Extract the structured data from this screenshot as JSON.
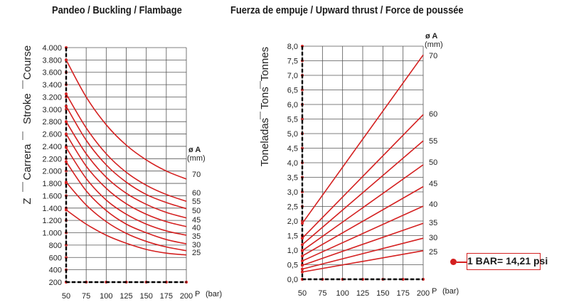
{
  "titles": {
    "left": "Pandeo / Buckling / Flambage",
    "right": "Fuerza de empuje / Upward thrust / Force de poussée"
  },
  "note": {
    "text": "1 BAR= 14,21 psi",
    "color": "#d42020"
  },
  "chart_data": [
    {
      "type": "line",
      "title": "Pandeo / Buckling / Flambage",
      "xlabel": "P",
      "xunit": "(bar)",
      "ylabel_parts": [
        "Z",
        "Carrera",
        "Stroke",
        "Course"
      ],
      "legend_title": "ø A",
      "legend_unit": "(mm)",
      "xlim": [
        50,
        200
      ],
      "ylim": [
        200,
        4000
      ],
      "x_ticks": [
        "50",
        "75",
        "100",
        "125",
        "150",
        "175",
        "200"
      ],
      "y_ticks": [
        "200",
        "400",
        "600",
        "800",
        "1.000",
        "1.200",
        "1.400",
        "1.600",
        "1.800",
        "2.000",
        "2.200",
        "2.400",
        "2.600",
        "2.800",
        "3.000",
        "3.200",
        "3.400",
        "3.600",
        "3.800",
        "4.000"
      ],
      "grid": true,
      "series_color": "#d42020",
      "x": [
        50,
        75,
        100,
        125,
        150,
        175,
        200
      ],
      "series": [
        {
          "name": "70",
          "values": [
            3800,
            3200,
            2750,
            2420,
            2180,
            2000,
            1870
          ]
        },
        {
          "name": "60",
          "values": [
            3250,
            2700,
            2280,
            1980,
            1770,
            1620,
            1510
          ]
        },
        {
          "name": "55",
          "values": [
            3050,
            2500,
            2100,
            1820,
            1620,
            1490,
            1390
          ]
        },
        {
          "name": "50",
          "values": [
            2800,
            2280,
            1900,
            1640,
            1460,
            1330,
            1240
          ]
        },
        {
          "name": "45",
          "values": [
            2600,
            2080,
            1720,
            1470,
            1300,
            1180,
            1100
          ]
        },
        {
          "name": "40",
          "values": [
            2380,
            1880,
            1530,
            1300,
            1140,
            1030,
            960
          ]
        },
        {
          "name": "35",
          "values": [
            2150,
            1680,
            1360,
            1140,
            1000,
            890,
            820
          ]
        },
        {
          "name": "30",
          "values": [
            1820,
            1450,
            1180,
            990,
            860,
            770,
            710
          ]
        },
        {
          "name": "25",
          "values": [
            1370,
            1140,
            960,
            830,
            730,
            670,
            640
          ]
        }
      ]
    },
    {
      "type": "line",
      "title": "Fuerza de empuje / Upward thrust / Force de poussée",
      "xlabel": "P",
      "xunit": "(bar)",
      "ylabel_parts": [
        "Toneladas",
        "Tons",
        "Tonnes"
      ],
      "legend_title": "ø A",
      "legend_unit": "(mm)",
      "xlim": [
        50,
        200
      ],
      "ylim": [
        0,
        8
      ],
      "x_ticks": [
        "50",
        "75",
        "100",
        "125",
        "150",
        "175",
        "200"
      ],
      "y_ticks": [
        "0,0",
        "0,5",
        "1,0",
        "1,5",
        "2,0",
        "2,5",
        "3,0",
        "3,5",
        "4,0",
        "4,5",
        "5,0",
        "5,5",
        "6,0",
        "6,5",
        "7,0",
        "7,5",
        "8,0"
      ],
      "grid": true,
      "series_color": "#d42020",
      "x": [
        50,
        200
      ],
      "series": [
        {
          "name": "70",
          "values": [
            1.92,
            7.7
          ]
        },
        {
          "name": "60",
          "values": [
            1.41,
            5.65
          ]
        },
        {
          "name": "55",
          "values": [
            1.19,
            4.75
          ]
        },
        {
          "name": "50",
          "values": [
            0.98,
            3.93
          ]
        },
        {
          "name": "45",
          "values": [
            0.8,
            3.18
          ]
        },
        {
          "name": "40",
          "values": [
            0.63,
            2.51
          ]
        },
        {
          "name": "35",
          "values": [
            0.48,
            1.92
          ]
        },
        {
          "name": "30",
          "values": [
            0.35,
            1.41
          ]
        },
        {
          "name": "25",
          "values": [
            0.25,
            0.98
          ]
        }
      ]
    }
  ]
}
